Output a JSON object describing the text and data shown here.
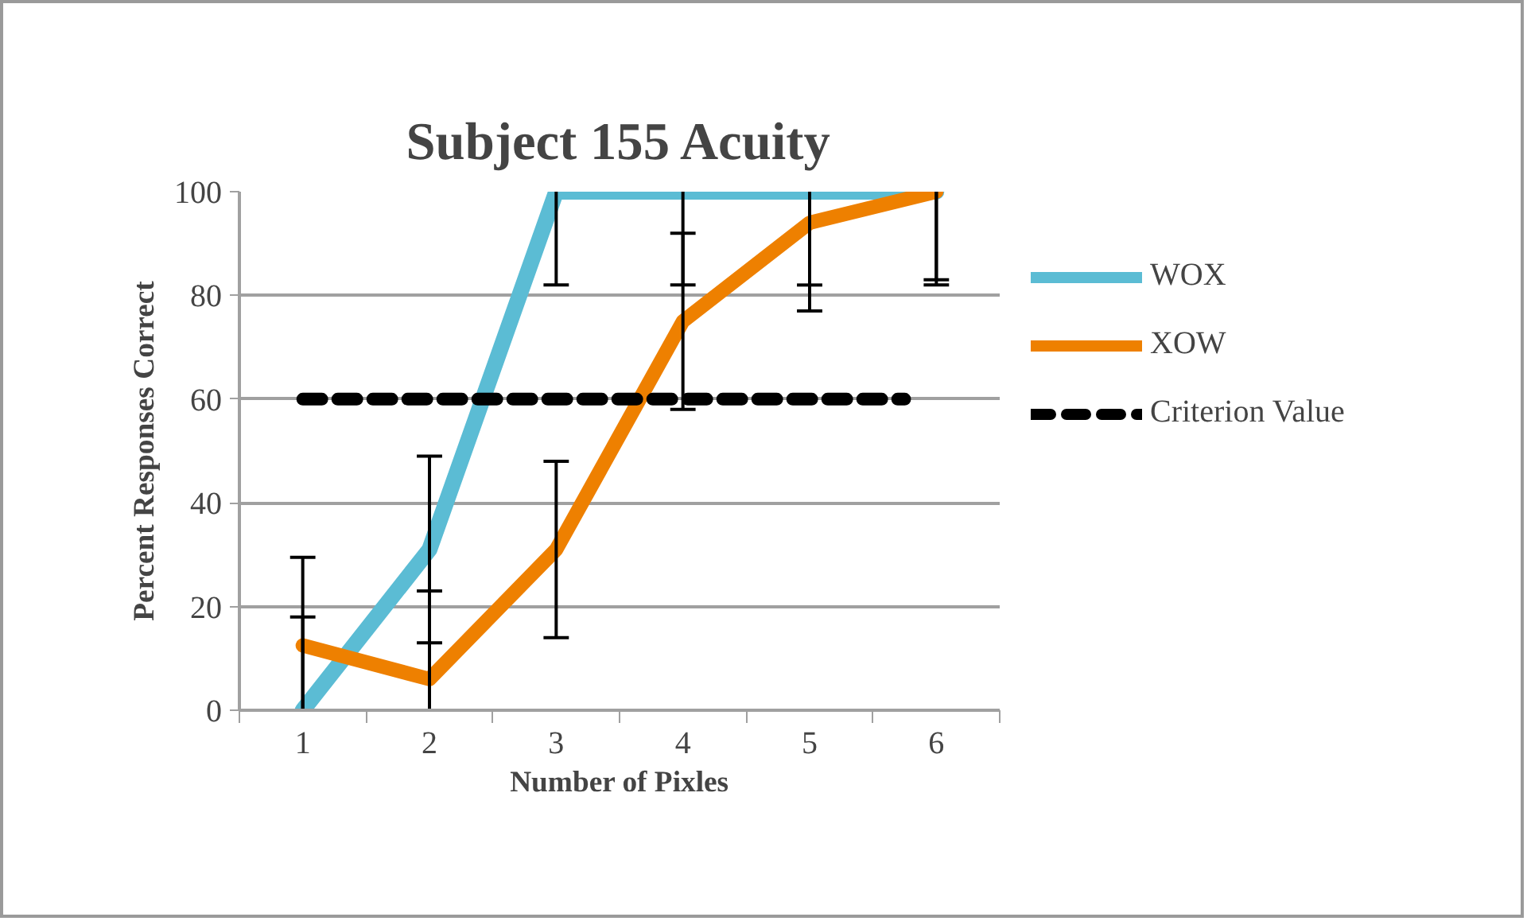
{
  "chart_data": {
    "type": "line",
    "title": "Subject 155 Acuity",
    "xlabel": "Number of Pixles",
    "ylabel": "Percent Responses Correct",
    "x": [
      1,
      2,
      3,
      4,
      5,
      6
    ],
    "xlim": [
      0.5,
      6.5
    ],
    "xticks": [
      1,
      2,
      3,
      4,
      5,
      6
    ],
    "ylim": [
      0,
      100
    ],
    "yticks": [
      0,
      20,
      40,
      60,
      80,
      100
    ],
    "series": [
      {
        "name": "WOX",
        "color": "#5bbcd4",
        "values": [
          0,
          31,
          100,
          100,
          100,
          100
        ],
        "errors": [
          [
            0,
            18
          ],
          [
            13,
            49
          ],
          [
            82,
            100
          ],
          [
            82,
            100
          ],
          [
            82,
            100
          ],
          [
            82,
            100
          ]
        ]
      },
      {
        "name": "XOW",
        "color": "#ee8000",
        "values": [
          12.5,
          6,
          31,
          75,
          94,
          100
        ],
        "errors": [
          [
            0,
            29.5
          ],
          [
            0,
            23
          ],
          [
            14,
            48
          ],
          [
            58,
            92
          ],
          [
            77,
            100
          ],
          [
            83,
            100
          ]
        ]
      },
      {
        "name": "Criterion Value",
        "color": "#000000",
        "x": [
          1,
          5.75
        ],
        "values": [
          60,
          60
        ],
        "line_style": "dashed"
      }
    ],
    "grid": "y",
    "legend": "right",
    "marker": "none"
  }
}
